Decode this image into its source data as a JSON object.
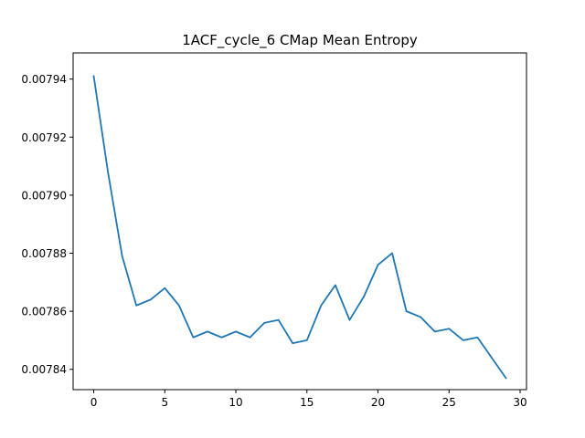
{
  "chart_data": {
    "type": "line",
    "title": "1ACF_cycle_6 CMap Mean Entropy",
    "xlabel": "",
    "ylabel": "",
    "xlim": [
      -1.45,
      30.45
    ],
    "ylim": [
      0.007833,
      0.007949
    ],
    "grid": false,
    "legend": "none",
    "x_ticks": [
      0,
      5,
      10,
      15,
      20,
      25,
      30
    ],
    "x_tick_labels": [
      "0",
      "5",
      "10",
      "15",
      "20",
      "25",
      "30"
    ],
    "y_ticks": [
      0.00784,
      0.00786,
      0.00788,
      0.0079,
      0.00792,
      0.00794
    ],
    "y_tick_labels": [
      "0.00784",
      "0.00786",
      "0.00788",
      "0.00790",
      "0.00792",
      "0.00794"
    ],
    "series": [
      {
        "color": "#1f77b4",
        "x": [
          0,
          1,
          2,
          3,
          4,
          5,
          6,
          7,
          8,
          9,
          10,
          11,
          12,
          13,
          14,
          15,
          16,
          17,
          18,
          19,
          20,
          21,
          22,
          23,
          24,
          25,
          26,
          27,
          28,
          29
        ],
        "y": [
          0.007941,
          0.007908,
          0.007879,
          0.007862,
          0.007864,
          0.007868,
          0.007862,
          0.007851,
          0.007853,
          0.007851,
          0.007853,
          0.007851,
          0.007856,
          0.007857,
          0.007849,
          0.00785,
          0.007862,
          0.007869,
          0.007857,
          0.007865,
          0.007876,
          0.00788,
          0.00786,
          0.007858,
          0.007853,
          0.007854,
          0.00785,
          0.007851,
          0.007844,
          0.007837
        ]
      }
    ]
  }
}
